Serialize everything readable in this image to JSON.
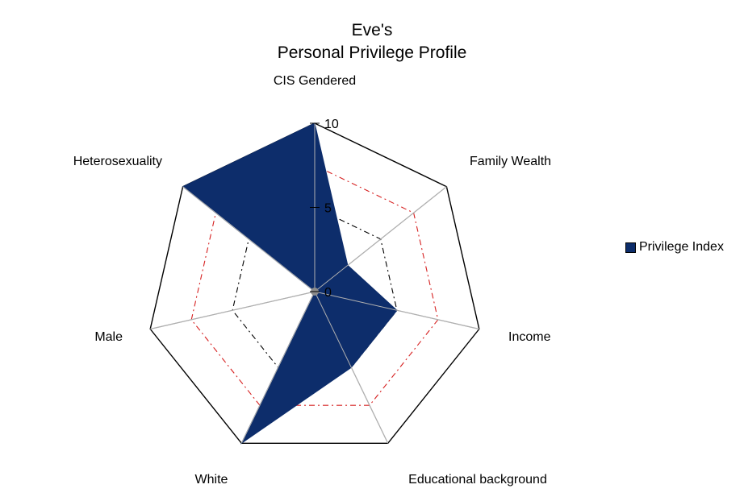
{
  "chart_data": {
    "type": "radar",
    "title": [
      "Eve's",
      "Personal Privilege Profile"
    ],
    "categories": [
      "CIS  Gendered",
      "Family Wealth",
      "Income",
      "Educational background",
      "White",
      "Male",
      "Heterosexuality"
    ],
    "series": [
      {
        "name": "Privilege Index",
        "values": [
          10,
          2.5,
          5,
          5,
          10,
          0,
          10
        ],
        "color": "#0d2d6b"
      }
    ],
    "rlim": [
      0,
      10
    ],
    "ticks": [
      0,
      5,
      10
    ],
    "guides": [
      {
        "value": 5,
        "color": "#000000",
        "style": "dash-dot"
      },
      {
        "value": 7.5,
        "color": "#d62020",
        "style": "dash-dot"
      }
    ],
    "legend": "right"
  }
}
